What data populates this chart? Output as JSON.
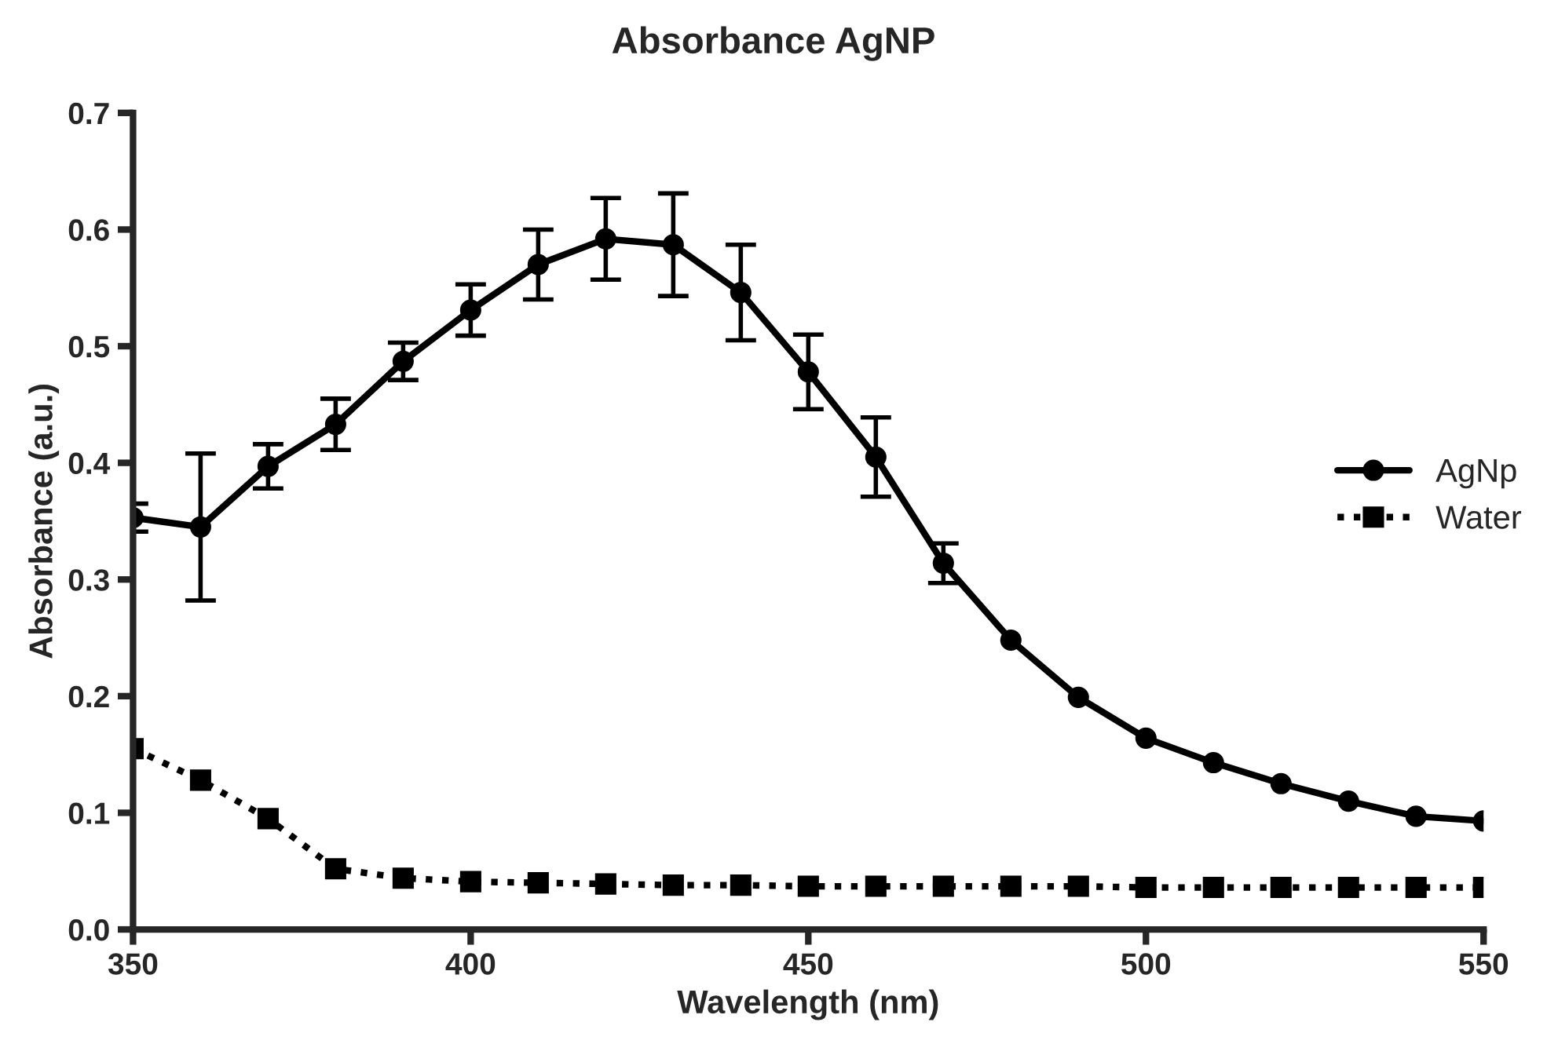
{
  "chart_data": {
    "type": "line",
    "title": "Absorbance AgNP",
    "xlabel": "Wavelength (nm)",
    "ylabel": "Absorbance (a.u.)",
    "x": [
      350,
      360,
      370,
      380,
      390,
      400,
      410,
      420,
      430,
      440,
      450,
      460,
      470,
      480,
      490,
      500,
      510,
      520,
      530,
      540,
      550
    ],
    "series": [
      {
        "name": "AgNp",
        "color": "#000000",
        "marker": "circle",
        "line_style": "solid",
        "values": [
          0.353,
          0.345,
          0.397,
          0.433,
          0.487,
          0.531,
          0.57,
          0.592,
          0.587,
          0.546,
          0.478,
          0.405,
          0.314,
          0.248,
          0.199,
          0.164,
          0.143,
          0.125,
          0.11,
          0.097,
          0.093
        ],
        "errors": [
          0.012,
          0.063,
          0.019,
          0.022,
          0.016,
          0.022,
          0.03,
          0.035,
          0.044,
          0.041,
          0.032,
          0.034,
          0.017,
          null,
          null,
          null,
          null,
          null,
          null,
          null,
          null
        ]
      },
      {
        "name": "Water",
        "color": "#000000",
        "marker": "square",
        "line_style": "dotted",
        "values": [
          0.155,
          0.128,
          0.095,
          0.052,
          0.044,
          0.041,
          0.04,
          0.039,
          0.038,
          0.038,
          0.037,
          0.037,
          0.037,
          0.037,
          0.037,
          0.036,
          0.036,
          0.036,
          0.036,
          0.036,
          0.036
        ]
      }
    ],
    "xlim": [
      350,
      550
    ],
    "xticks": [
      350,
      400,
      450,
      500,
      550
    ],
    "ylim": [
      0,
      0.7
    ],
    "yticks": [
      {
        "value": 0,
        "label": "0.0"
      },
      0.1,
      0.2,
      0.3,
      0.4,
      0.5,
      0.6,
      0.7
    ],
    "grid": false,
    "legend": "right"
  }
}
